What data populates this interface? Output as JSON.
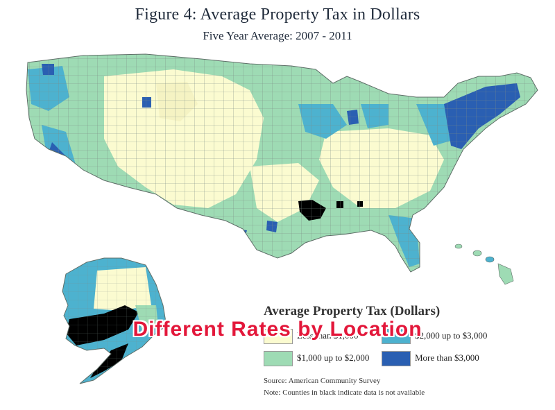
{
  "title": "Figure 4: Average Property Tax in Dollars",
  "subtitle": "Five Year Average: 2007 - 2011",
  "overlay_caption": "Different Rates by Location",
  "legend": {
    "title": "Average Property Tax (Dollars)",
    "items": [
      {
        "label": "Less than $1,000",
        "color": "#fbfbd0"
      },
      {
        "label": "$2,000 up to $3,000",
        "color": "#4db2cf"
      },
      {
        "label": "$1,000 up to $2,000",
        "color": "#9edbb4"
      },
      {
        "label": "More than $3,000",
        "color": "#2a5fb2"
      }
    ],
    "no_data_color": "#000000"
  },
  "source": "Source: American Community Survey",
  "note": "Note: Counties in black indicate data is not available",
  "colors": {
    "lt_1000": "#fbfbd0",
    "1000_2000": "#9edbb4",
    "2000_3000": "#4db2cf",
    "gt_3000": "#2a5fb2",
    "no_data": "#000000",
    "county_border": "#7c8c86"
  }
}
